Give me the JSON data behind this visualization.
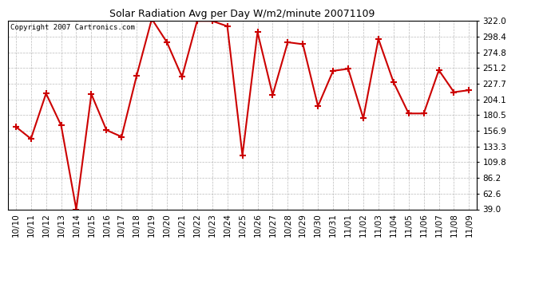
{
  "title": "Solar Radiation Avg per Day W/m2/minute 20071109",
  "copyright_text": "Copyright 2007 Cartronics.com",
  "line_color": "#cc0000",
  "bg_color": "#ffffff",
  "grid_color": "#aaaaaa",
  "ylim": [
    39.0,
    322.0
  ],
  "yticks": [
    39.0,
    62.6,
    86.2,
    109.8,
    133.3,
    156.9,
    180.5,
    204.1,
    227.7,
    251.2,
    274.8,
    298.4,
    322.0
  ],
  "labels": [
    "10/10",
    "10/11",
    "10/12",
    "10/13",
    "10/14",
    "10/15",
    "10/16",
    "10/17",
    "10/18",
    "10/19",
    "10/20",
    "10/21",
    "10/22",
    "10/23",
    "10/24",
    "10/25",
    "10/26",
    "10/27",
    "10/28",
    "10/29",
    "10/30",
    "10/31",
    "11/01",
    "11/02",
    "11/03",
    "11/04",
    "11/05",
    "11/06",
    "11/07",
    "11/08",
    "11/09"
  ],
  "values": [
    163,
    145,
    213,
    165,
    39,
    212,
    158,
    148,
    240,
    325,
    290,
    238,
    322,
    322,
    314,
    120,
    305,
    211,
    290,
    287,
    194,
    247,
    250,
    176,
    295,
    230,
    183,
    183,
    248,
    215,
    218
  ]
}
